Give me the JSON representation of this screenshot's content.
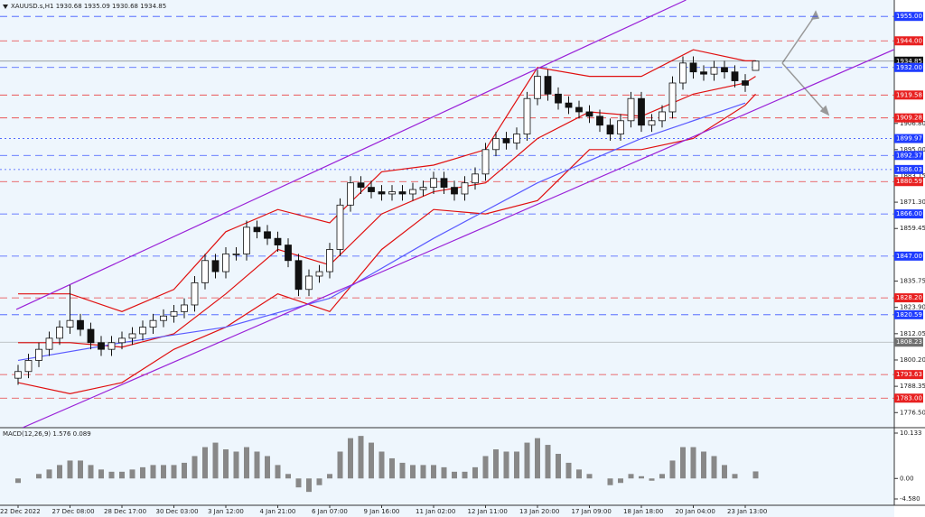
{
  "chart_data": {
    "type": "candlestick",
    "title": "XAUUSD.s,H1  1930.68 1935.09 1930.68 1934.85",
    "categories": [
      "22 Dec 2022",
      null,
      null,
      null,
      null,
      "27 Dec 08:00",
      null,
      null,
      null,
      null,
      "28 Dec 17:00",
      null,
      null,
      null,
      null,
      "30 Dec 03:00",
      null,
      null,
      null,
      null,
      "3 Jan 12:00",
      null,
      null,
      null,
      null,
      "4 Jan 21:00",
      null,
      null,
      null,
      null,
      "6 Jan 07:00",
      null,
      null,
      null,
      null,
      "9 Jan 16:00",
      null,
      null,
      null,
      null,
      "11 Jan 02:00",
      null,
      null,
      null,
      null,
      "12 Jan 11:00",
      null,
      null,
      null,
      null,
      "13 Jan 20:00",
      null,
      null,
      null,
      null,
      "17 Jan 09:00",
      null,
      null,
      null,
      null,
      "18 Jan 18:00",
      null,
      null,
      null,
      null,
      "20 Jan 04:00",
      null,
      null,
      null,
      null,
      "23 Jan 13:00",
      null
    ],
    "open": [
      1792,
      1795,
      1800,
      1805,
      1810,
      1815,
      1818,
      1814,
      1808,
      1805,
      1808,
      1810,
      1812,
      1815,
      1818,
      1820,
      1822,
      1825,
      1835,
      1845,
      1840,
      1848,
      1848,
      1860,
      1858,
      1855,
      1852,
      1845,
      1832,
      1838,
      1840,
      1850,
      1870,
      1880,
      1878,
      1876,
      1875,
      1876,
      1875,
      1877,
      1878,
      1882,
      1878,
      1875,
      1880,
      1884,
      1895,
      1900,
      1898,
      1902,
      1918,
      1928,
      1920,
      1916,
      1914,
      1912,
      1910,
      1906,
      1902,
      1908,
      1918,
      1906,
      1908,
      1912,
      1925,
      1934,
      1930,
      1929,
      1932,
      1930,
      1926,
      1930.68
    ],
    "high": [
      1798,
      1803,
      1808,
      1813,
      1818,
      1834,
      1821,
      1817,
      1811,
      1811,
      1813,
      1815,
      1818,
      1821,
      1823,
      1825,
      1828,
      1838,
      1848,
      1848,
      1851,
      1851,
      1863,
      1863,
      1861,
      1858,
      1855,
      1848,
      1841,
      1843,
      1853,
      1873,
      1883,
      1883,
      1881,
      1879,
      1879,
      1879,
      1880,
      1881,
      1885,
      1885,
      1881,
      1883,
      1887,
      1898,
      1903,
      1903,
      1905,
      1921,
      1931,
      1931,
      1923,
      1919,
      1917,
      1915,
      1913,
      1909,
      1911,
      1921,
      1921,
      1911,
      1915,
      1928,
      1937,
      1937,
      1933,
      1935,
      1935,
      1933,
      1929,
      1935.09
    ],
    "low": [
      1789,
      1792,
      1797,
      1802,
      1807,
      1812,
      1811,
      1805,
      1802,
      1802,
      1805,
      1807,
      1809,
      1812,
      1815,
      1817,
      1819,
      1822,
      1832,
      1837,
      1837,
      1845,
      1845,
      1855,
      1852,
      1849,
      1842,
      1829,
      1829,
      1835,
      1837,
      1847,
      1867,
      1875,
      1873,
      1872,
      1872,
      1872,
      1872,
      1874,
      1875,
      1875,
      1872,
      1872,
      1877,
      1881,
      1892,
      1895,
      1895,
      1899,
      1915,
      1917,
      1913,
      1911,
      1909,
      1907,
      1903,
      1899,
      1899,
      1905,
      1903,
      1903,
      1905,
      1909,
      1922,
      1927,
      1926,
      1926,
      1927,
      1923,
      1921,
      1930.68
    ],
    "close": [
      1795,
      1800,
      1805,
      1810,
      1815,
      1818,
      1814,
      1808,
      1805,
      1808,
      1810,
      1812,
      1815,
      1818,
      1820,
      1822,
      1825,
      1835,
      1845,
      1840,
      1848,
      1848,
      1860,
      1858,
      1855,
      1852,
      1845,
      1832,
      1838,
      1840,
      1850,
      1870,
      1880,
      1878,
      1876,
      1875,
      1876,
      1875,
      1877,
      1878,
      1882,
      1878,
      1875,
      1880,
      1884,
      1895,
      1900,
      1898,
      1902,
      1918,
      1928,
      1920,
      1916,
      1914,
      1912,
      1910,
      1906,
      1902,
      1908,
      1918,
      1906,
      1908,
      1912,
      1925,
      1934,
      1930,
      1929,
      1932,
      1930,
      1926,
      1924,
      1934.85
    ],
    "ylim": [
      1769.7,
      1962.4
    ],
    "yticks": [
      {
        "value": 1776.5,
        "label": "1776.50"
      },
      1788.35,
      {
        "value": 1800.2,
        "label": "1800.20"
      },
      1812.05,
      {
        "value": 1823.9,
        "label": "1823.90"
      },
      1835.75,
      1859.45,
      {
        "value": 1871.3,
        "label": "1871.30"
      },
      1883.15,
      {
        "value": 1895,
        "label": "1895.00"
      },
      {
        "value": 1906.8,
        "label": "1906.80"
      }
    ],
    "overlays": [
      {
        "color": "#e01010",
        "x": [
          0,
          5,
          10,
          15,
          20,
          25,
          30,
          35,
          40,
          45,
          50,
          55,
          60,
          65,
          70,
          71
        ],
        "values": [
          1830,
          1830,
          1822,
          1832,
          1858,
          1868,
          1862,
          1885,
          1888,
          1895,
          1932,
          1928,
          1928,
          1940,
          1935,
          1935
        ]
      },
      {
        "color": "#e01010",
        "x": [
          0,
          5,
          10,
          15,
          20,
          25,
          30,
          35,
          40,
          45,
          50,
          55,
          60,
          65,
          70,
          71
        ],
        "values": [
          1790,
          1785,
          1790,
          1805,
          1815,
          1830,
          1822,
          1850,
          1868,
          1866,
          1872,
          1895,
          1895,
          1900,
          1915,
          1920
        ]
      },
      {
        "color": "#e01010",
        "x": [
          0,
          5,
          10,
          15,
          20,
          25,
          30,
          35,
          40,
          45,
          50,
          55,
          60,
          65,
          70,
          71
        ],
        "values": [
          1808,
          1808,
          1806,
          1812,
          1830,
          1850,
          1843,
          1866,
          1876,
          1880,
          1900,
          1912,
          1910,
          1920,
          1925,
          1928
        ]
      },
      {
        "color": "#5a5aff",
        "x": [
          0,
          10,
          20,
          30,
          40,
          50,
          60,
          70
        ],
        "values": [
          1800,
          1808,
          1815,
          1828,
          1855,
          1880,
          1900,
          1916
        ]
      },
      {
        "color": "#9a22d8",
        "x": [
          -0.17,
          64.3
        ],
        "values": [
          1823,
          1962.4
        ]
      },
      {
        "color": "#9a22d8",
        "x": [
          0.43,
          87.3
        ],
        "values": [
          1769.7,
          1946.1
        ]
      }
    ],
    "levels": [
      {
        "value": 1955,
        "label": "1955.00",
        "color": "#1f3cff",
        "style": "dashed"
      },
      {
        "value": 1944,
        "label": "1944.00",
        "color": "#e82020",
        "style": "dashed"
      },
      {
        "value": 1934.85,
        "label": "1934.85",
        "color": "#111111",
        "style": "solid"
      },
      {
        "value": 1932,
        "label": "1932.00",
        "color": "#1f3cff",
        "style": "dashed"
      },
      {
        "value": 1919.58,
        "label": "1919.58",
        "color": "#e82020",
        "style": "dashed"
      },
      {
        "value": 1909.28,
        "label": "1909.28",
        "color": "#e82020",
        "style": "dashed"
      },
      {
        "value": 1899.97,
        "label": "1899.97",
        "color": "#1f3cff",
        "style": "dotted"
      },
      {
        "value": 1892.37,
        "label": "1892.37",
        "color": "#1f3cff",
        "style": "dashed"
      },
      {
        "value": 1886.03,
        "label": "1886.03",
        "color": "#1f3cff",
        "style": "dotted"
      },
      {
        "value": 1880.59,
        "label": "1880.59",
        "color": "#e82020",
        "style": "dashed"
      },
      {
        "value": 1866,
        "label": "1866.00",
        "color": "#1f3cff",
        "style": "dashed"
      },
      {
        "value": 1847,
        "label": "1847.00",
        "color": "#1f3cff",
        "style": "dashed"
      },
      {
        "value": 1828.2,
        "label": "1828.20",
        "color": "#e82020",
        "style": "dashed"
      },
      {
        "value": 1820.59,
        "label": "1820.59",
        "color": "#1f3cff",
        "style": "dashed"
      },
      {
        "value": 1808.23,
        "label": "1808.23",
        "color": "#707070",
        "style": "solid"
      },
      {
        "value": 1793.63,
        "label": "1793.63",
        "color": "#e82020",
        "style": "dashed"
      },
      {
        "value": 1783,
        "label": "1783.00",
        "color": "#e82020",
        "style": "dashed"
      }
    ],
    "macd": {
      "label": "MACD(12,26,9) 1.576 0.089",
      "color": "#888888",
      "values": [
        -1,
        0,
        1,
        2,
        3,
        4,
        4,
        3,
        2,
        1.5,
        1.5,
        2,
        2.5,
        3,
        3,
        3,
        3.5,
        5,
        7,
        8,
        6.5,
        6,
        7,
        6,
        5,
        3,
        1,
        -2,
        -3,
        -1.5,
        1,
        6,
        9,
        9.5,
        8,
        6,
        4.5,
        3.5,
        3,
        3,
        3,
        2.5,
        1.5,
        1.5,
        2.5,
        5,
        6.5,
        6,
        6,
        8,
        9,
        7.5,
        5.5,
        3.5,
        2,
        1,
        0,
        -1.5,
        -1,
        1,
        0.5,
        -0.5,
        1,
        4,
        7,
        7,
        6,
        5,
        3,
        1,
        0,
        1.576
      ],
      "ylim": [
        -4.58,
        10.133
      ],
      "yticks": [
        {
          "value": 10.133,
          "label": "10.133"
        },
        {
          "value": 0,
          "label": "0.00"
        },
        {
          "value": -4.58,
          "label": "-4.580"
        }
      ]
    }
  }
}
